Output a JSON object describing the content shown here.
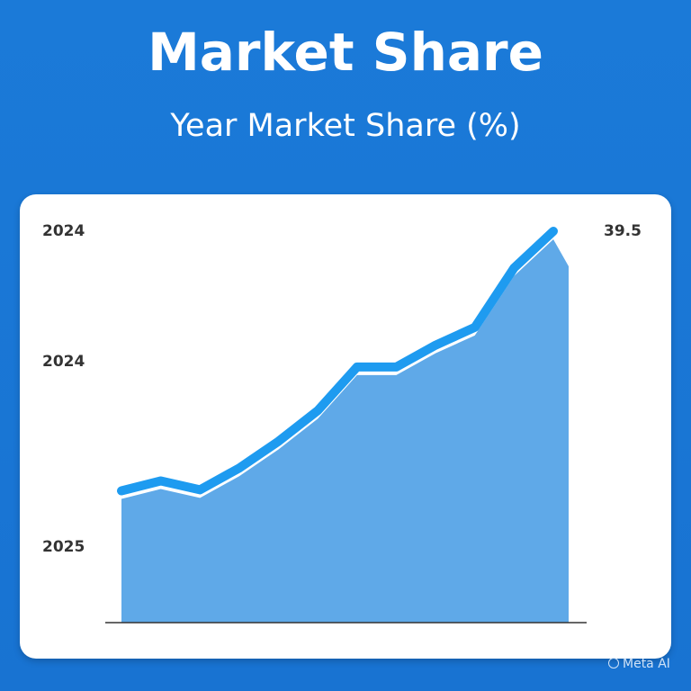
{
  "chart_data": {
    "type": "area",
    "title": "Market Share",
    "subtitle": "Year Market Share (%)",
    "y_tick_labels": [
      "2024",
      "2024",
      "2025"
    ],
    "end_label": "39.5",
    "values": [
      13.3,
      14.3,
      13.4,
      15.6,
      18.3,
      21.4,
      25.8,
      25.8,
      28.0,
      29.8,
      35.8,
      39.5
    ],
    "ylim": [
      0,
      39.5
    ],
    "grid": false,
    "line_color": "#1e9bf0",
    "fill_color": "#5fa9e8",
    "background_color": "#1a78d6"
  },
  "watermark": "Meta AI"
}
